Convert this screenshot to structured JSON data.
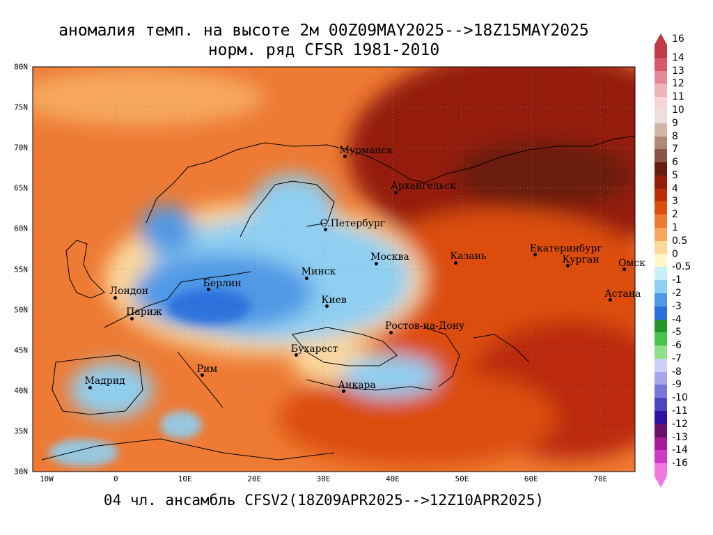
{
  "title_line1": "аномалия темп. на высоте 2м 00Z09MAY2025-->18Z15MAY2025",
  "title_line2": "норм. ряд CFSR 1981-2010",
  "footer": "04 чл. ансамбль CFSV2(18Z09APR2025-->12Z10APR2025)",
  "map": {
    "lat_range": [
      30,
      80
    ],
    "lon_range": [
      -12,
      75
    ],
    "lat_labels": [
      "80N",
      "75N",
      "70N",
      "65N",
      "60N",
      "55N",
      "50N",
      "45N",
      "40N",
      "35N",
      "30N"
    ],
    "lon_labels": [
      "10W",
      "0",
      "10E",
      "20E",
      "30E",
      "40E",
      "50E",
      "60E",
      "70E"
    ]
  },
  "cities": [
    {
      "name": "Мурманск",
      "lon": 33.1,
      "lat": 68.9
    },
    {
      "name": "Архангельск",
      "lon": 40.5,
      "lat": 64.5
    },
    {
      "name": "С.Петербург",
      "lon": 30.3,
      "lat": 59.9
    },
    {
      "name": "Москва",
      "lon": 37.6,
      "lat": 55.7
    },
    {
      "name": "Казань",
      "lon": 49.1,
      "lat": 55.8
    },
    {
      "name": "Екатеринбург",
      "lon": 60.6,
      "lat": 56.8
    },
    {
      "name": "Курган",
      "lon": 65.3,
      "lat": 55.4
    },
    {
      "name": "Омск",
      "lon": 73.4,
      "lat": 55.0
    },
    {
      "name": "Астана",
      "lon": 71.4,
      "lat": 51.2
    },
    {
      "name": "Минск",
      "lon": 27.6,
      "lat": 53.9
    },
    {
      "name": "Берлин",
      "lon": 13.4,
      "lat": 52.5
    },
    {
      "name": "Лондон",
      "lon": -0.1,
      "lat": 51.5
    },
    {
      "name": "Париж",
      "lon": 2.3,
      "lat": 48.9
    },
    {
      "name": "Киев",
      "lon": 30.5,
      "lat": 50.4
    },
    {
      "name": "Ростов-на-Дону",
      "lon": 39.7,
      "lat": 47.2
    },
    {
      "name": "Бухарест",
      "lon": 26.1,
      "lat": 44.4
    },
    {
      "name": "Мадрид",
      "lon": -3.7,
      "lat": 40.4
    },
    {
      "name": "Рим",
      "lon": 12.5,
      "lat": 41.9
    },
    {
      "name": "Анкара",
      "lon": 32.9,
      "lat": 39.9
    }
  ],
  "legend": {
    "labels": [
      "16",
      "14",
      "13",
      "12",
      "11",
      "10",
      "9",
      "8",
      "7",
      "6",
      "5",
      "4",
      "3",
      "2",
      "1",
      "0.5",
      "0",
      "-0.5",
      "-1",
      "-2",
      "-3",
      "-4",
      "-5",
      "-6",
      "-7",
      "-8",
      "-9",
      "-10",
      "-11",
      "-12",
      "-13",
      "-14",
      "-16"
    ],
    "colors": [
      "#c03a48",
      "#d65a6a",
      "#e58a95",
      "#f0b5bb",
      "#f5d5d5",
      "#ece0dc",
      "#d2b6a6",
      "#b08878",
      "#8a5545",
      "#6a1c0c",
      "#951e08",
      "#bb2c08",
      "#dc4d10",
      "#ee7a33",
      "#f7a85e",
      "#fbd79c",
      "#fff7cc",
      "#c8f0fa",
      "#8fcff2",
      "#4f99e6",
      "#2c6edc",
      "#23962c",
      "#49c24e",
      "#8ee08a",
      "#ccd0f5",
      "#a7a6ea",
      "#7878d8",
      "#4b45c0",
      "#2d13a0",
      "#6a0f6a",
      "#a61b99",
      "#d238c6",
      "#f07ae0"
    ]
  }
}
